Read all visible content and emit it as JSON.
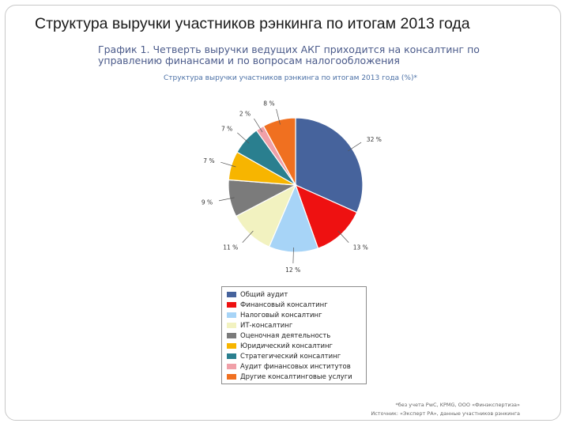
{
  "slide_title": "Структура выручки участников рэнкинга по итогам 2013 года",
  "chart_data": {
    "type": "pie",
    "title": "График 1. Четверть выручки ведущих АКГ приходится на консалтинг по управлению финансами и по вопросам налогообложения",
    "subtitle": "Структура выручки участников рэнкинга по итогам 2013 года (%)*",
    "legend_position": "bottom",
    "slices": [
      {
        "name": "Общий аудит",
        "value": 32,
        "label": "32 %",
        "color": "#46639c"
      },
      {
        "name": "Финансовый консалтинг",
        "value": 13,
        "label": "13 %",
        "color": "#ee1111"
      },
      {
        "name": "Налоговый консалтинг",
        "value": 12,
        "label": "12 %",
        "color": "#a7d4f7"
      },
      {
        "name": "ИТ-консалтинг",
        "value": 11,
        "label": "11 %",
        "color": "#f2f2c0"
      },
      {
        "name": "Оценочная деятельность",
        "value": 9,
        "label": "9 %",
        "color": "#7b7b7b"
      },
      {
        "name": "Юридический консалтинг",
        "value": 7,
        "label": "7 %",
        "color": "#f7b500"
      },
      {
        "name": "Стратегический консалтинг",
        "value": 7,
        "label": "7 %",
        "color": "#2a7f8f"
      },
      {
        "name": "Аудит финансовых институтов",
        "value": 2,
        "label": "2 %",
        "color": "#f0a0a8"
      },
      {
        "name": "Другие консалтинговые услуги",
        "value": 8,
        "label": "8 %",
        "color": "#f07020"
      }
    ]
  },
  "notes": {
    "line1": "*без учета РwС, KPMG, ООО «Финэкспертиза»",
    "line2": "Источник: «Эксперт РА», данные участников рэнкинга"
  }
}
